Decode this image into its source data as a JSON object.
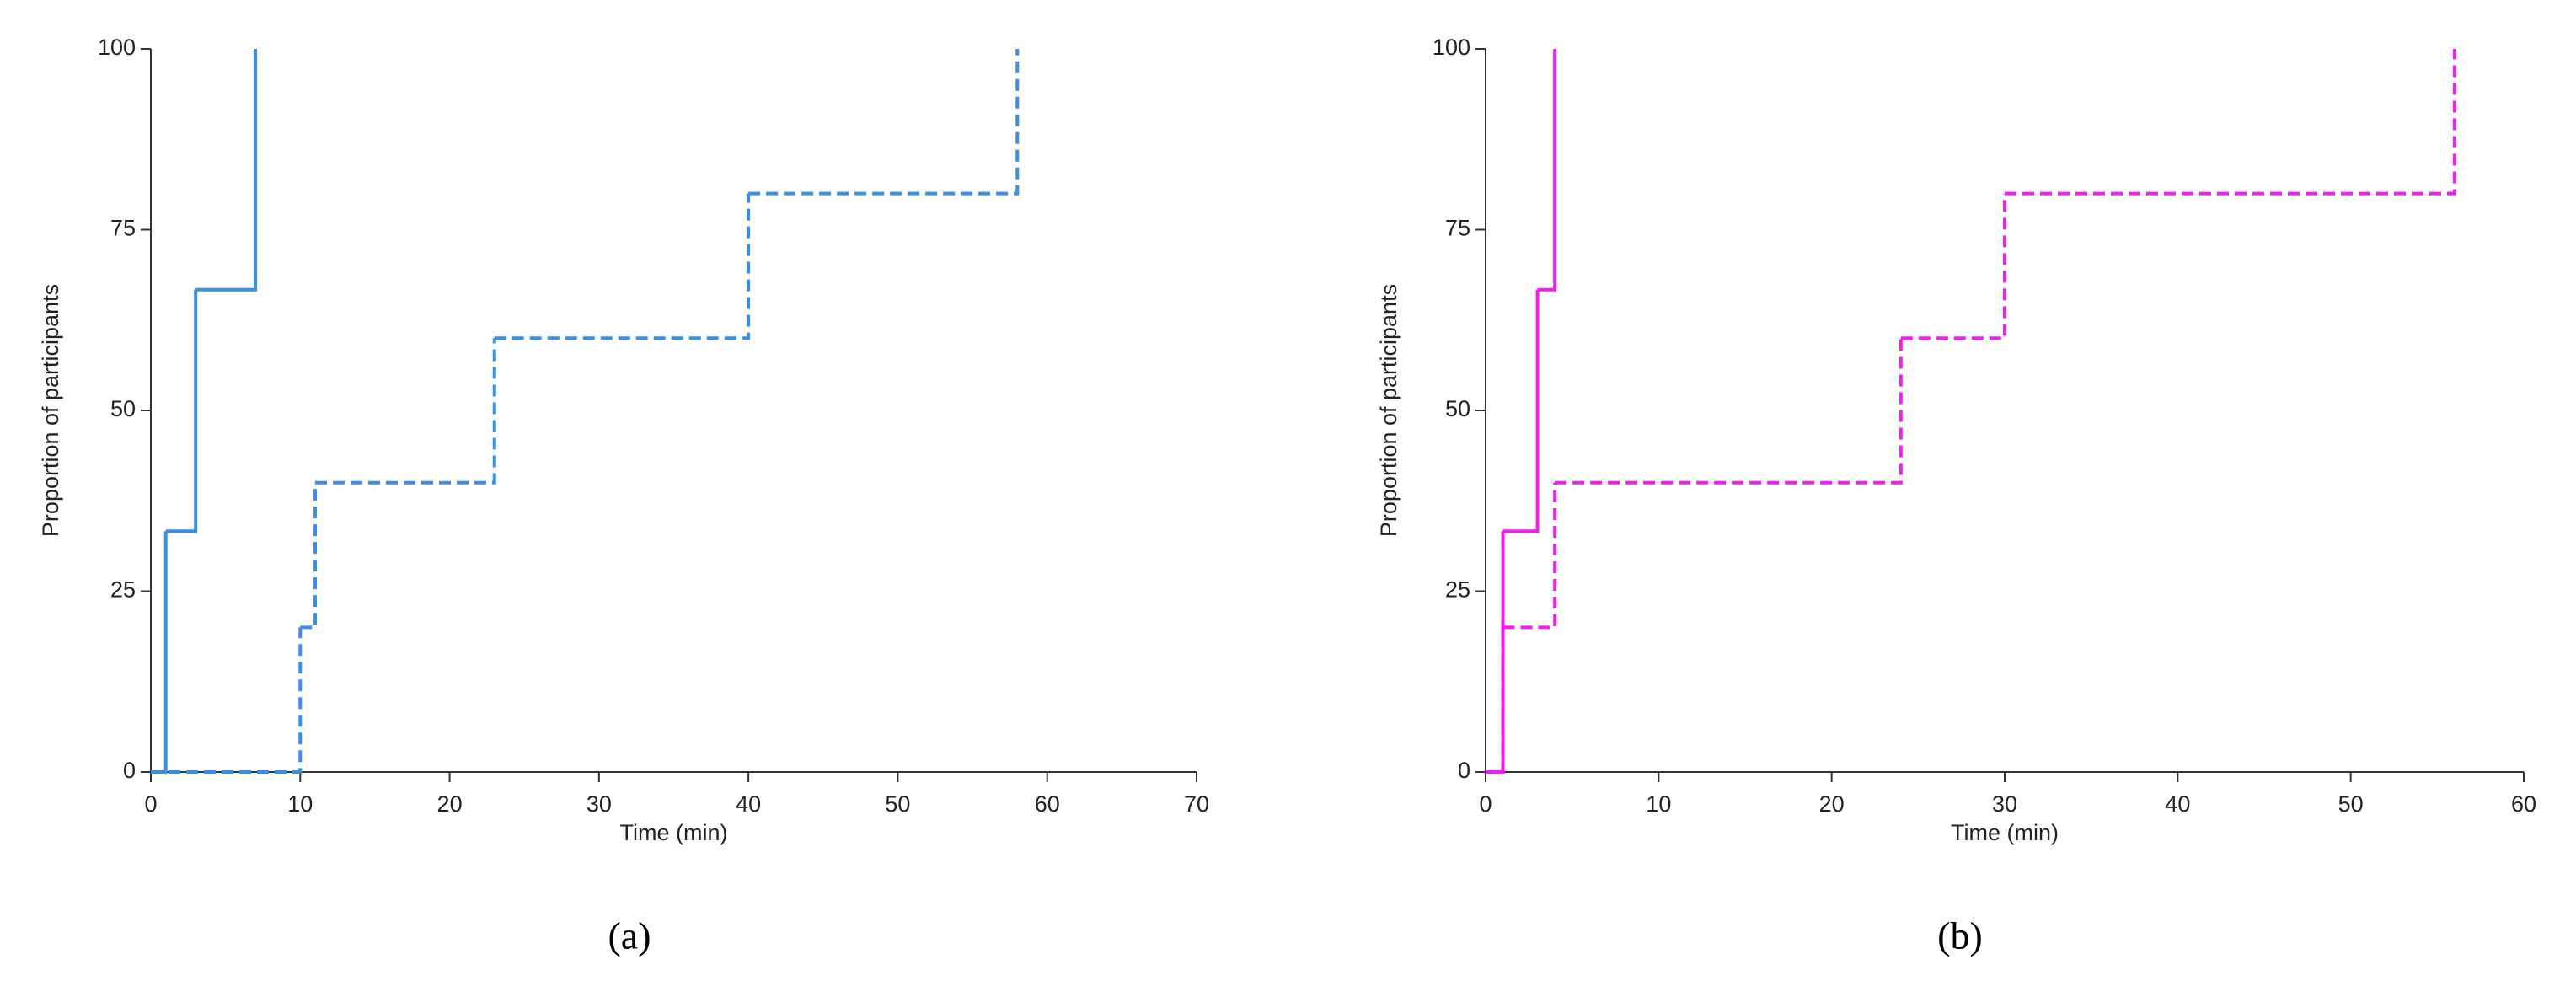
{
  "chart_data": [
    {
      "type": "step",
      "label": "(a)",
      "x_label": "Time (min)",
      "y_label": "Proportion of participants",
      "xlim": [
        0,
        70
      ],
      "xticks": [
        0,
        10,
        20,
        30,
        40,
        50,
        60,
        70
      ],
      "ylim": [
        0,
        100
      ],
      "yticks": [
        0,
        25,
        50,
        75,
        100
      ],
      "series": [
        {
          "color": "#3a8ee6",
          "dashed": false,
          "x": [
            0,
            1,
            3,
            7
          ],
          "values": [
            0,
            33.3,
            66.7,
            100
          ]
        },
        {
          "color": "#3a8ee6",
          "dashed": true,
          "x": [
            0,
            10,
            11,
            23,
            40,
            58
          ],
          "values": [
            0,
            20,
            40,
            60,
            80,
            100
          ]
        }
      ]
    },
    {
      "type": "step",
      "label": "(b)",
      "x_label": "Time (min)",
      "y_label": "Proportion of participants",
      "xlim": [
        0,
        60
      ],
      "xticks": [
        0,
        10,
        20,
        30,
        40,
        50,
        60
      ],
      "ylim": [
        0,
        100
      ],
      "yticks": [
        0,
        25,
        50,
        75,
        100
      ],
      "series": [
        {
          "color": "#f01ef0",
          "dashed": false,
          "x": [
            0,
            1,
            3,
            4
          ],
          "values": [
            0,
            33.3,
            66.7,
            100
          ]
        },
        {
          "color": "#f01ef0",
          "dashed": true,
          "x": [
            0,
            1,
            4,
            24,
            30,
            56
          ],
          "values": [
            0,
            20,
            40,
            60,
            80,
            100
          ]
        }
      ]
    }
  ]
}
